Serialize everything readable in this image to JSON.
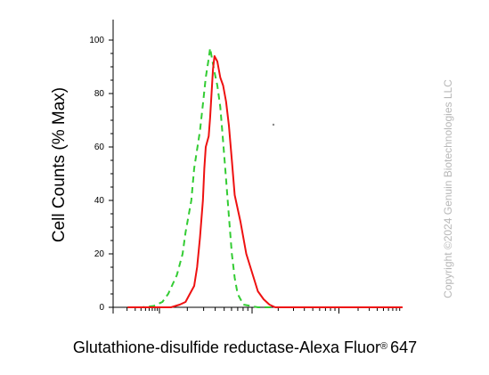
{
  "chart_data": {
    "type": "line",
    "title": "",
    "xlabel": "Glutathione-disulfide reductase-Alexa Fluor",
    "xlabel_sup": "®",
    "xlabel_suffix": "647",
    "ylabel": "Cell Counts (% Max)",
    "x_scale": "log",
    "ylim": [
      0,
      100
    ],
    "yticks": [
      0,
      20,
      40,
      60,
      80,
      100
    ],
    "ytick_labels": [
      "0",
      "20",
      "40",
      "60",
      "80",
      "100"
    ],
    "grid": false,
    "series": [
      {
        "name": "",
        "color": "#33cc33",
        "style": "dashed",
        "points": [
          [
            0.05,
            0
          ],
          [
            0.1,
            0
          ],
          [
            0.14,
            0.5
          ],
          [
            0.17,
            2
          ],
          [
            0.19,
            5
          ],
          [
            0.22,
            12
          ],
          [
            0.24,
            20
          ],
          [
            0.25,
            28
          ],
          [
            0.27,
            40
          ],
          [
            0.28,
            52
          ],
          [
            0.3,
            66
          ],
          [
            0.31,
            76
          ],
          [
            0.32,
            86
          ],
          [
            0.33,
            93
          ],
          [
            0.335,
            97
          ],
          [
            0.34,
            94
          ],
          [
            0.35,
            88
          ],
          [
            0.36,
            83
          ],
          [
            0.37,
            75
          ],
          [
            0.38,
            62
          ],
          [
            0.39,
            48
          ],
          [
            0.4,
            34
          ],
          [
            0.41,
            20
          ],
          [
            0.42,
            11
          ],
          [
            0.43,
            5
          ],
          [
            0.45,
            1
          ],
          [
            0.5,
            0
          ],
          [
            0.6,
            0
          ]
        ]
      },
      {
        "name": "",
        "color": "#ee1111",
        "style": "solid",
        "points": [
          [
            0.05,
            0
          ],
          [
            0.2,
            0
          ],
          [
            0.23,
            1
          ],
          [
            0.25,
            2
          ],
          [
            0.26,
            4
          ],
          [
            0.28,
            8
          ],
          [
            0.29,
            15
          ],
          [
            0.3,
            26
          ],
          [
            0.31,
            40
          ],
          [
            0.315,
            52
          ],
          [
            0.32,
            60
          ],
          [
            0.33,
            64
          ],
          [
            0.335,
            71
          ],
          [
            0.34,
            80
          ],
          [
            0.345,
            89
          ],
          [
            0.35,
            94
          ],
          [
            0.36,
            92
          ],
          [
            0.37,
            86
          ],
          [
            0.38,
            83
          ],
          [
            0.39,
            77
          ],
          [
            0.4,
            68
          ],
          [
            0.41,
            55
          ],
          [
            0.42,
            42
          ],
          [
            0.44,
            32
          ],
          [
            0.46,
            20
          ],
          [
            0.48,
            13
          ],
          [
            0.5,
            6
          ],
          [
            0.52,
            3
          ],
          [
            0.54,
            1
          ],
          [
            0.56,
            0
          ],
          [
            1.0,
            0
          ]
        ]
      }
    ]
  },
  "watermark": "Copyright ©2024 Genuin Biotechnologies LLC"
}
